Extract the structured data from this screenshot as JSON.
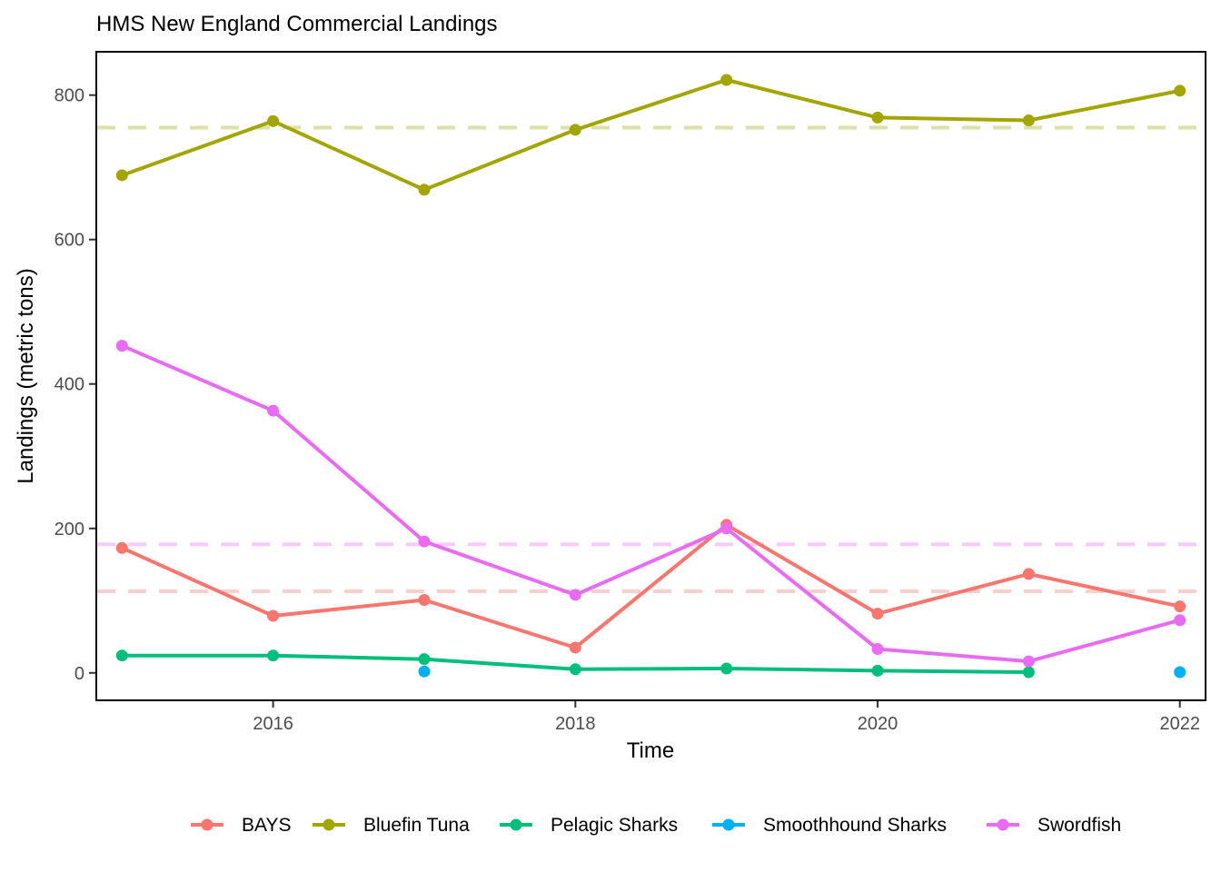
{
  "chart_data": {
    "type": "line",
    "title": "HMS New England Commercial Landings",
    "xlabel": "Time",
    "ylabel": "Landings (metric tons)",
    "xlim": [
      2014.83,
      2022.17
    ],
    "ylim": [
      -38,
      860
    ],
    "x_ticks": [
      2016,
      2018,
      2020,
      2022
    ],
    "x_tick_labels": [
      "2016",
      "2018",
      "2020",
      "2022"
    ],
    "y_ticks": [
      0,
      200,
      400,
      600,
      800
    ],
    "y_tick_labels": [
      "0",
      "200",
      "400",
      "600",
      "800"
    ],
    "grid": false,
    "legend_position": "bottom",
    "series": [
      {
        "name": "BAYS",
        "color": "#F8766D",
        "x": [
          2015,
          2016,
          2017,
          2018,
          2019,
          2020,
          2021,
          2022
        ],
        "y": [
          173,
          79,
          101,
          35,
          205,
          82,
          137,
          92
        ],
        "mean_reference": 113
      },
      {
        "name": "Bluefin Tuna",
        "color": "#A3A500",
        "x": [
          2015,
          2016,
          2017,
          2018,
          2019,
          2020,
          2021,
          2022
        ],
        "y": [
          689,
          764,
          669,
          752,
          821,
          769,
          765,
          806
        ],
        "mean_reference": 755
      },
      {
        "name": "Pelagic Sharks",
        "color": "#00BF7D",
        "x": [
          2015,
          2016,
          2017,
          2018,
          2019,
          2020,
          2021
        ],
        "y": [
          24,
          24,
          19,
          5,
          6,
          3,
          1
        ]
      },
      {
        "name": "Smoothhound Sharks",
        "color": "#00B0F6",
        "x": [
          2017,
          2022
        ],
        "y": [
          2,
          1
        ],
        "points_only": true
      },
      {
        "name": "Swordfish",
        "color": "#E76BF3",
        "x": [
          2015,
          2016,
          2017,
          2018,
          2019,
          2020,
          2021,
          2022
        ],
        "y": [
          453,
          363,
          182,
          108,
          200,
          33,
          16,
          73
        ],
        "mean_reference": 178
      }
    ]
  }
}
